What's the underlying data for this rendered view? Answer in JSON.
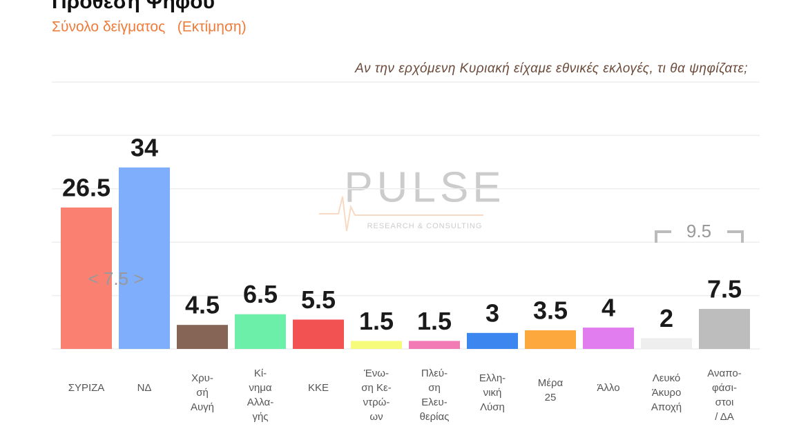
{
  "chart_data": {
    "type": "bar",
    "title": "Πρόθεση Ψήφου",
    "subtitle": "Σύνολο δείγματος   (Εκτίμηση)",
    "question": "Αν την ερχόμενη Κυριακή είχαμε εθνικές εκλογές, τι θα ψηφίζατε;",
    "categories": [
      [
        "ΣΥΡΙΖΑ"
      ],
      [
        "ΝΔ"
      ],
      [
        "Χρυ-",
        "σή",
        "Αυγή"
      ],
      [
        "Κί-",
        "νημα",
        "Αλλα-",
        "γής"
      ],
      [
        "ΚΚΕ"
      ],
      [
        "Ένω-",
        "ση Κε-",
        "ντρώ-",
        "ων"
      ],
      [
        "Πλεύ-",
        "ση",
        "Ελευ-",
        "θερίας"
      ],
      [
        "Ελλη-",
        "νική",
        "Λύση"
      ],
      [
        "Μέρα",
        "25"
      ],
      [
        "Άλλο"
      ],
      [
        "Λευκό",
        "Άκυρο",
        "Αποχή"
      ],
      [
        "Αναπο-",
        "φάσι-",
        "στοι",
        "/ ΔΑ"
      ]
    ],
    "values": [
      26.5,
      34,
      4.5,
      6.5,
      5.5,
      1.5,
      1.5,
      3,
      3.5,
      4,
      2,
      7.5
    ],
    "colors": [
      "#fa8072",
      "#7eaefc",
      "#866456",
      "#6cf0a9",
      "#f25252",
      "#f6fb7a",
      "#f37bb5",
      "#3c86f0",
      "#fca83c",
      "#e27df0",
      "#eeeeee",
      "#bdbdbd"
    ],
    "ylim": [
      0,
      50
    ],
    "gridlines": [
      0,
      10,
      20,
      30,
      40,
      50
    ],
    "annotations": [
      "< 7.5 >",
      "9.5"
    ],
    "watermark": [
      "PULSE",
      "RESEARCH & CONSULTING"
    ]
  }
}
